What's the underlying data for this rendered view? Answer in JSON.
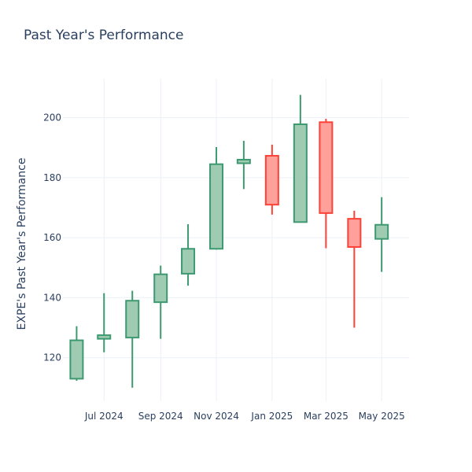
{
  "chart_data": {
    "type": "candlestick",
    "title": "Past Year's Performance",
    "xlabel": "",
    "ylabel": "EXPE's Past Year's Performance",
    "ylim": [
      105.5,
      213
    ],
    "yticks": [
      120,
      140,
      160,
      180,
      200
    ],
    "xlim": [
      "2024-05-17",
      "2025-05-31"
    ],
    "xticks": [
      {
        "date": "2024-07-01",
        "label": "Jul 2024"
      },
      {
        "date": "2024-09-01",
        "label": "Sep 2024"
      },
      {
        "date": "2024-11-01",
        "label": "Nov 2024"
      },
      {
        "date": "2025-01-01",
        "label": "Jan 2025"
      },
      {
        "date": "2025-03-01",
        "label": "Mar 2025"
      },
      {
        "date": "2025-05-01",
        "label": "May 2025"
      }
    ],
    "grid": true,
    "colors": {
      "increasing_line": "#3d9970",
      "increasing_fill": "#9fcbb2",
      "decreasing_line": "#ff4136",
      "decreasing_fill": "#ffa09b"
    },
    "candles": [
      {
        "date": "2024-06-01",
        "open": 113.0,
        "high": 130.5,
        "low": 112.3,
        "close": 125.8
      },
      {
        "date": "2024-07-01",
        "open": 126.3,
        "high": 141.5,
        "low": 121.8,
        "close": 127.5
      },
      {
        "date": "2024-08-01",
        "open": 126.7,
        "high": 142.3,
        "low": 110.0,
        "close": 139.0
      },
      {
        "date": "2024-09-01",
        "open": 138.5,
        "high": 150.7,
        "low": 126.3,
        "close": 147.8
      },
      {
        "date": "2024-10-01",
        "open": 148.0,
        "high": 164.5,
        "low": 144.0,
        "close": 156.3
      },
      {
        "date": "2024-11-01",
        "open": 156.3,
        "high": 190.2,
        "low": 156.0,
        "close": 184.5
      },
      {
        "date": "2024-12-01",
        "open": 184.8,
        "high": 192.3,
        "low": 176.2,
        "close": 186.0
      },
      {
        "date": "2025-01-01",
        "open": 187.3,
        "high": 191.0,
        "low": 167.7,
        "close": 171.0
      },
      {
        "date": "2025-02-01",
        "open": 165.2,
        "high": 207.6,
        "low": 165.2,
        "close": 197.8
      },
      {
        "date": "2025-03-01",
        "open": 198.5,
        "high": 199.6,
        "low": 156.5,
        "close": 168.2
      },
      {
        "date": "2025-04-01",
        "open": 166.3,
        "high": 169.0,
        "low": 130.0,
        "close": 156.9
      },
      {
        "date": "2025-05-01",
        "open": 159.6,
        "high": 173.5,
        "low": 148.6,
        "close": 164.3
      }
    ]
  }
}
